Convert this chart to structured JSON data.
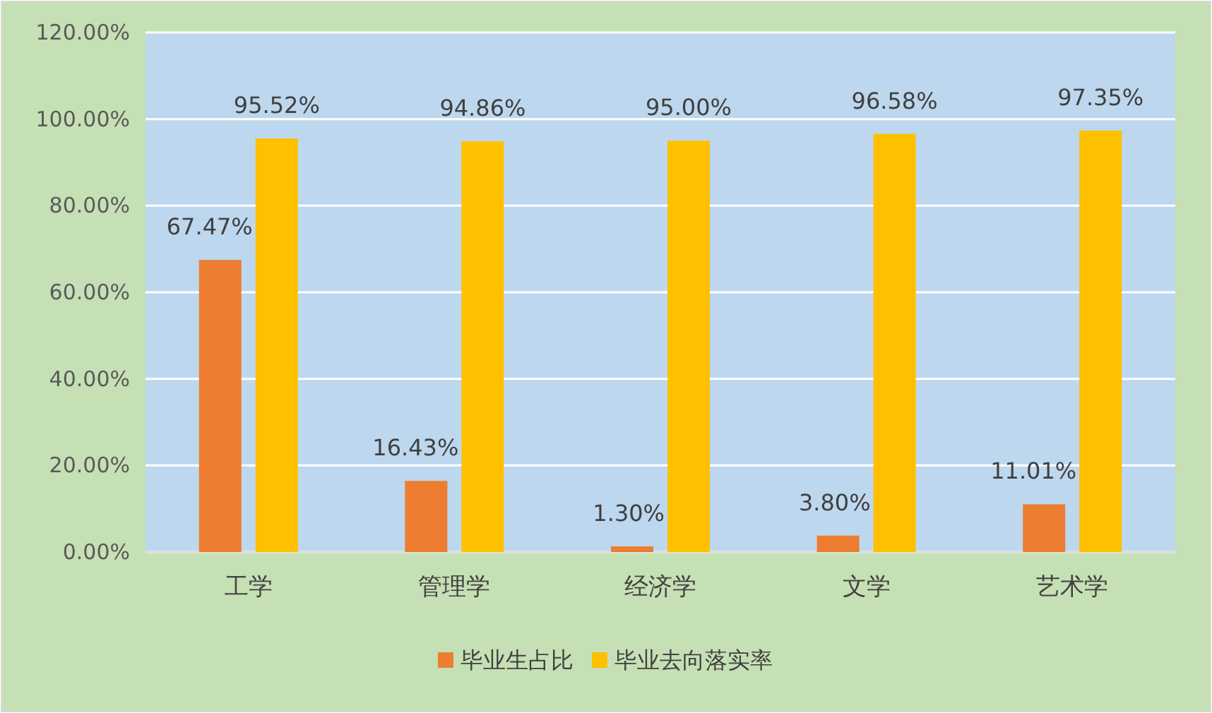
{
  "chart_data": {
    "type": "bar",
    "categories": [
      "工学",
      "管理学",
      "经济学",
      "文学",
      "艺术学"
    ],
    "series": [
      {
        "name": "毕业生占比",
        "color": "#ed7d31",
        "values": [
          67.47,
          16.43,
          1.3,
          3.8,
          11.01
        ],
        "value_labels": [
          "67.47%",
          "16.43%",
          "1.30%",
          "3.80%",
          "11.01%"
        ]
      },
      {
        "name": "毕业去向落实率",
        "color": "#ffc000",
        "values": [
          95.52,
          94.86,
          95.0,
          96.58,
          97.35
        ],
        "value_labels": [
          "95.52%",
          "94.86%",
          "95.00%",
          "96.58%",
          "97.35%"
        ]
      }
    ],
    "ylim": [
      0,
      120
    ],
    "yticks": [
      {
        "value": 0,
        "label": "0.00%"
      },
      {
        "value": 20,
        "label": "20.00%"
      },
      {
        "value": 40,
        "label": "40.00%"
      },
      {
        "value": 60,
        "label": "60.00%"
      },
      {
        "value": 80,
        "label": "80.00%"
      },
      {
        "value": 100,
        "label": "100.00%"
      },
      {
        "value": 120,
        "label": "120.00%"
      }
    ],
    "grid": "y",
    "legend": "bottom"
  }
}
